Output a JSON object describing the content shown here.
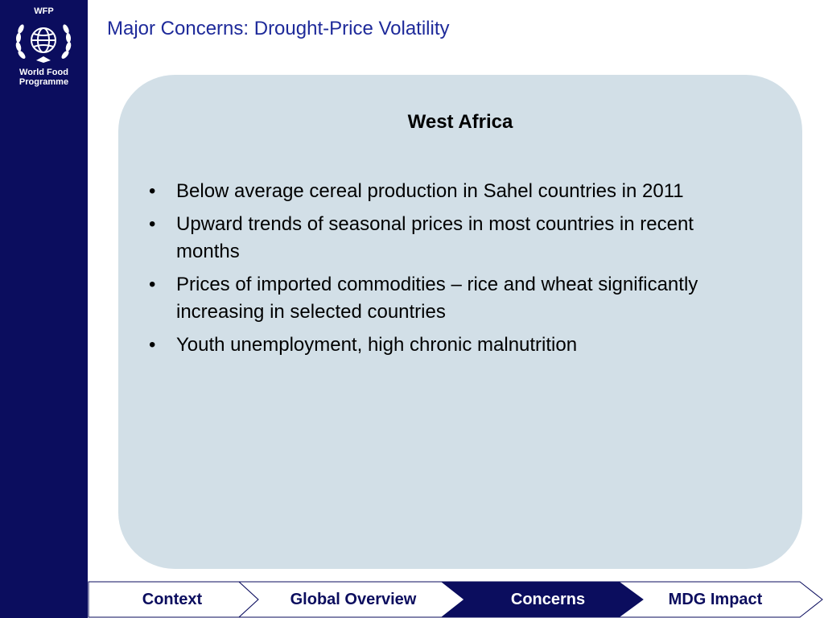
{
  "sidebar": {
    "logo_abbr": "WFP",
    "logo_name_line1": "World Food",
    "logo_name_line2": "Programme",
    "bg_color": "#0b0d5e"
  },
  "slide": {
    "title": "Major Concerns: Drought-Price Volatility",
    "panel": {
      "heading": "West Africa",
      "bullets": [
        "Below average cereal production in Sahel countries in 2011",
        "Upward trends of seasonal prices in most countries in recent months",
        "Prices of imported commodities – rice and wheat significantly increasing in selected countries",
        "Youth unemployment, high chronic malnutrition"
      ]
    }
  },
  "nav": {
    "tabs": [
      {
        "label": "Context",
        "active": false
      },
      {
        "label": "Global Overview",
        "active": false
      },
      {
        "label": "Concerns",
        "active": true
      },
      {
        "label": "MDG Impact",
        "active": false
      }
    ],
    "active_color": "#0b0d5e",
    "text_color": "#0b0d5e"
  }
}
